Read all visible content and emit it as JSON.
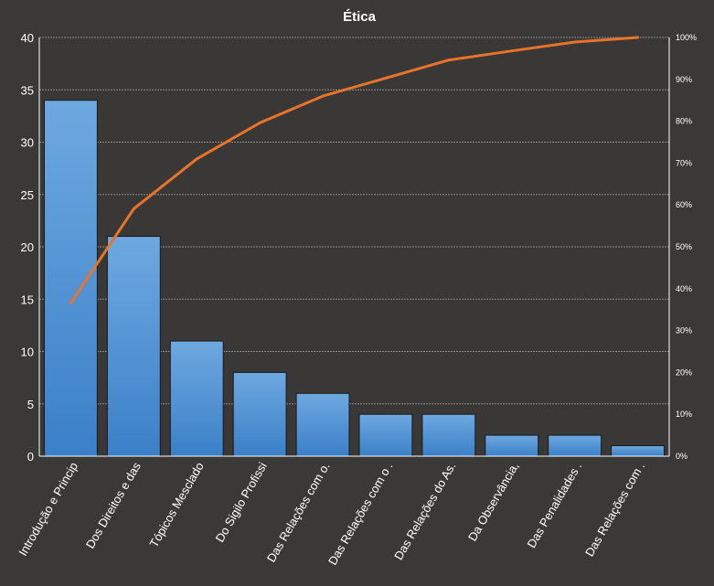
{
  "chart_data": {
    "type": "bar",
    "title": "Ética",
    "categories": [
      "Introdução e Princip",
      "Dos Direitos e das",
      "Tópicos Mesclado",
      "Do Sigilo Profissi",
      "Das Relações com o.",
      "Das Relações com o .",
      "Das Relações do As.",
      "Da Observância,",
      "Das Penalidades .",
      "Das Relações com ."
    ],
    "series": [
      {
        "type": "bar",
        "values": [
          34,
          21,
          11,
          8,
          6,
          4,
          4,
          2,
          2,
          1
        ]
      },
      {
        "type": "line",
        "axis": "right",
        "values": [
          0.366,
          0.591,
          0.71,
          0.796,
          0.86,
          0.903,
          0.946,
          0.968,
          0.989,
          1.0
        ]
      }
    ],
    "ylim": [
      0,
      40
    ],
    "yticks": [
      "0",
      "5",
      "10",
      "15",
      "20",
      "25",
      "30",
      "35",
      "40"
    ],
    "y2lim": [
      0,
      1
    ],
    "y2ticks": [
      "0%",
      "10%",
      "20%",
      "30%",
      "40%",
      "50%",
      "60%",
      "70%",
      "80%",
      "90%",
      "100%"
    ],
    "grid": true,
    "colors": {
      "background": "#3b3937",
      "plot_background": "#3a3836",
      "bar_top": "#6ea8e0",
      "bar_bottom": "#3a80c8",
      "bar_edge": "#1a1a1a",
      "line": "#e8732a",
      "gridline": "#8a8a8a",
      "text": "#ffffff"
    }
  }
}
